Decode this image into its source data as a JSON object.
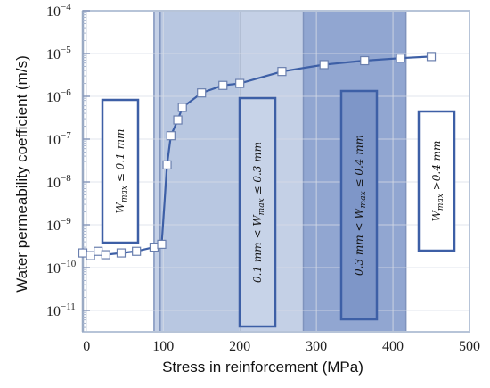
{
  "chart_data": {
    "type": "scatter",
    "xlabel": "Stress in reinforcement (MPa)",
    "ylabel": "Water permeability coefficient (m/s)",
    "xlim": [
      -5,
      500
    ],
    "ylim_log10": [
      -11.5,
      -4
    ],
    "x_ticks": [
      {
        "value": 0,
        "label": "0"
      },
      {
        "value": 100,
        "label": "100"
      },
      {
        "value": 200,
        "label": "200"
      },
      {
        "value": 300,
        "label": "300"
      },
      {
        "value": 400,
        "label": "400"
      },
      {
        "value": 500,
        "label": "500"
      }
    ],
    "y_ticks": [
      {
        "exp": -4,
        "label": "10",
        "sup": "−4"
      },
      {
        "exp": -5,
        "label": "10",
        "sup": "−5"
      },
      {
        "exp": -6,
        "label": "10",
        "sup": "−6"
      },
      {
        "exp": -7,
        "label": "10",
        "sup": "−7"
      },
      {
        "exp": -8,
        "label": "10",
        "sup": "−8"
      },
      {
        "exp": -9,
        "label": "10",
        "sup": "−9"
      },
      {
        "exp": -10,
        "label": "10",
        "sup": "−10"
      },
      {
        "exp": -11,
        "label": "10",
        "sup": "−11"
      }
    ],
    "regions": [
      {
        "x0": 88,
        "x1": 283,
        "color": "#c4d0e6"
      },
      {
        "x0": 96,
        "x1": 201,
        "color": "#b8c7e1"
      },
      {
        "x0": 283,
        "x1": 417,
        "color": "#91a6d1"
      }
    ],
    "region_lines": [
      88,
      96,
      201,
      283,
      417
    ],
    "series_color": "#3d5fa6",
    "points": [
      {
        "x": -5,
        "y": 2.2e-10
      },
      {
        "x": 5,
        "y": 1.9e-10
      },
      {
        "x": 15,
        "y": 2.4e-10
      },
      {
        "x": 25,
        "y": 2e-10
      },
      {
        "x": 45,
        "y": 2.2e-10
      },
      {
        "x": 65,
        "y": 2.4e-10
      },
      {
        "x": 88,
        "y": 3e-10
      },
      {
        "x": 98,
        "y": 3.5e-10
      },
      {
        "x": 105,
        "y": 2.5e-08
      },
      {
        "x": 110,
        "y": 1.2e-07
      },
      {
        "x": 119,
        "y": 2.8e-07
      },
      {
        "x": 125,
        "y": 5.5e-07
      },
      {
        "x": 150,
        "y": 1.2e-06
      },
      {
        "x": 178,
        "y": 1.8e-06
      },
      {
        "x": 200,
        "y": 2e-06
      },
      {
        "x": 255,
        "y": 3.8e-06
      },
      {
        "x": 310,
        "y": 5.5e-06
      },
      {
        "x": 363,
        "y": 6.8e-06
      },
      {
        "x": 410,
        "y": 7.8e-06
      },
      {
        "x": 450,
        "y": 8.5e-06
      }
    ],
    "annotations": [
      {
        "id": "w1",
        "text": "W",
        "sub": "max",
        "rest": " ≤ 0.1 mm",
        "box_color": "#3d5fa6"
      },
      {
        "id": "w2",
        "text": "0.1 mm < W",
        "sub": "max",
        "rest": " ≤ 0.3 mm",
        "box_color": "#3d5fa6"
      },
      {
        "id": "w3",
        "text": "0.3 mm < W",
        "sub": "max",
        "rest": " ≤ 0.4 mm",
        "box_color": "#3d5fa6"
      },
      {
        "id": "w4",
        "text": "W",
        "sub": "max",
        "rest": " >0.4 mm",
        "box_color": "#3d5fa6"
      }
    ]
  }
}
